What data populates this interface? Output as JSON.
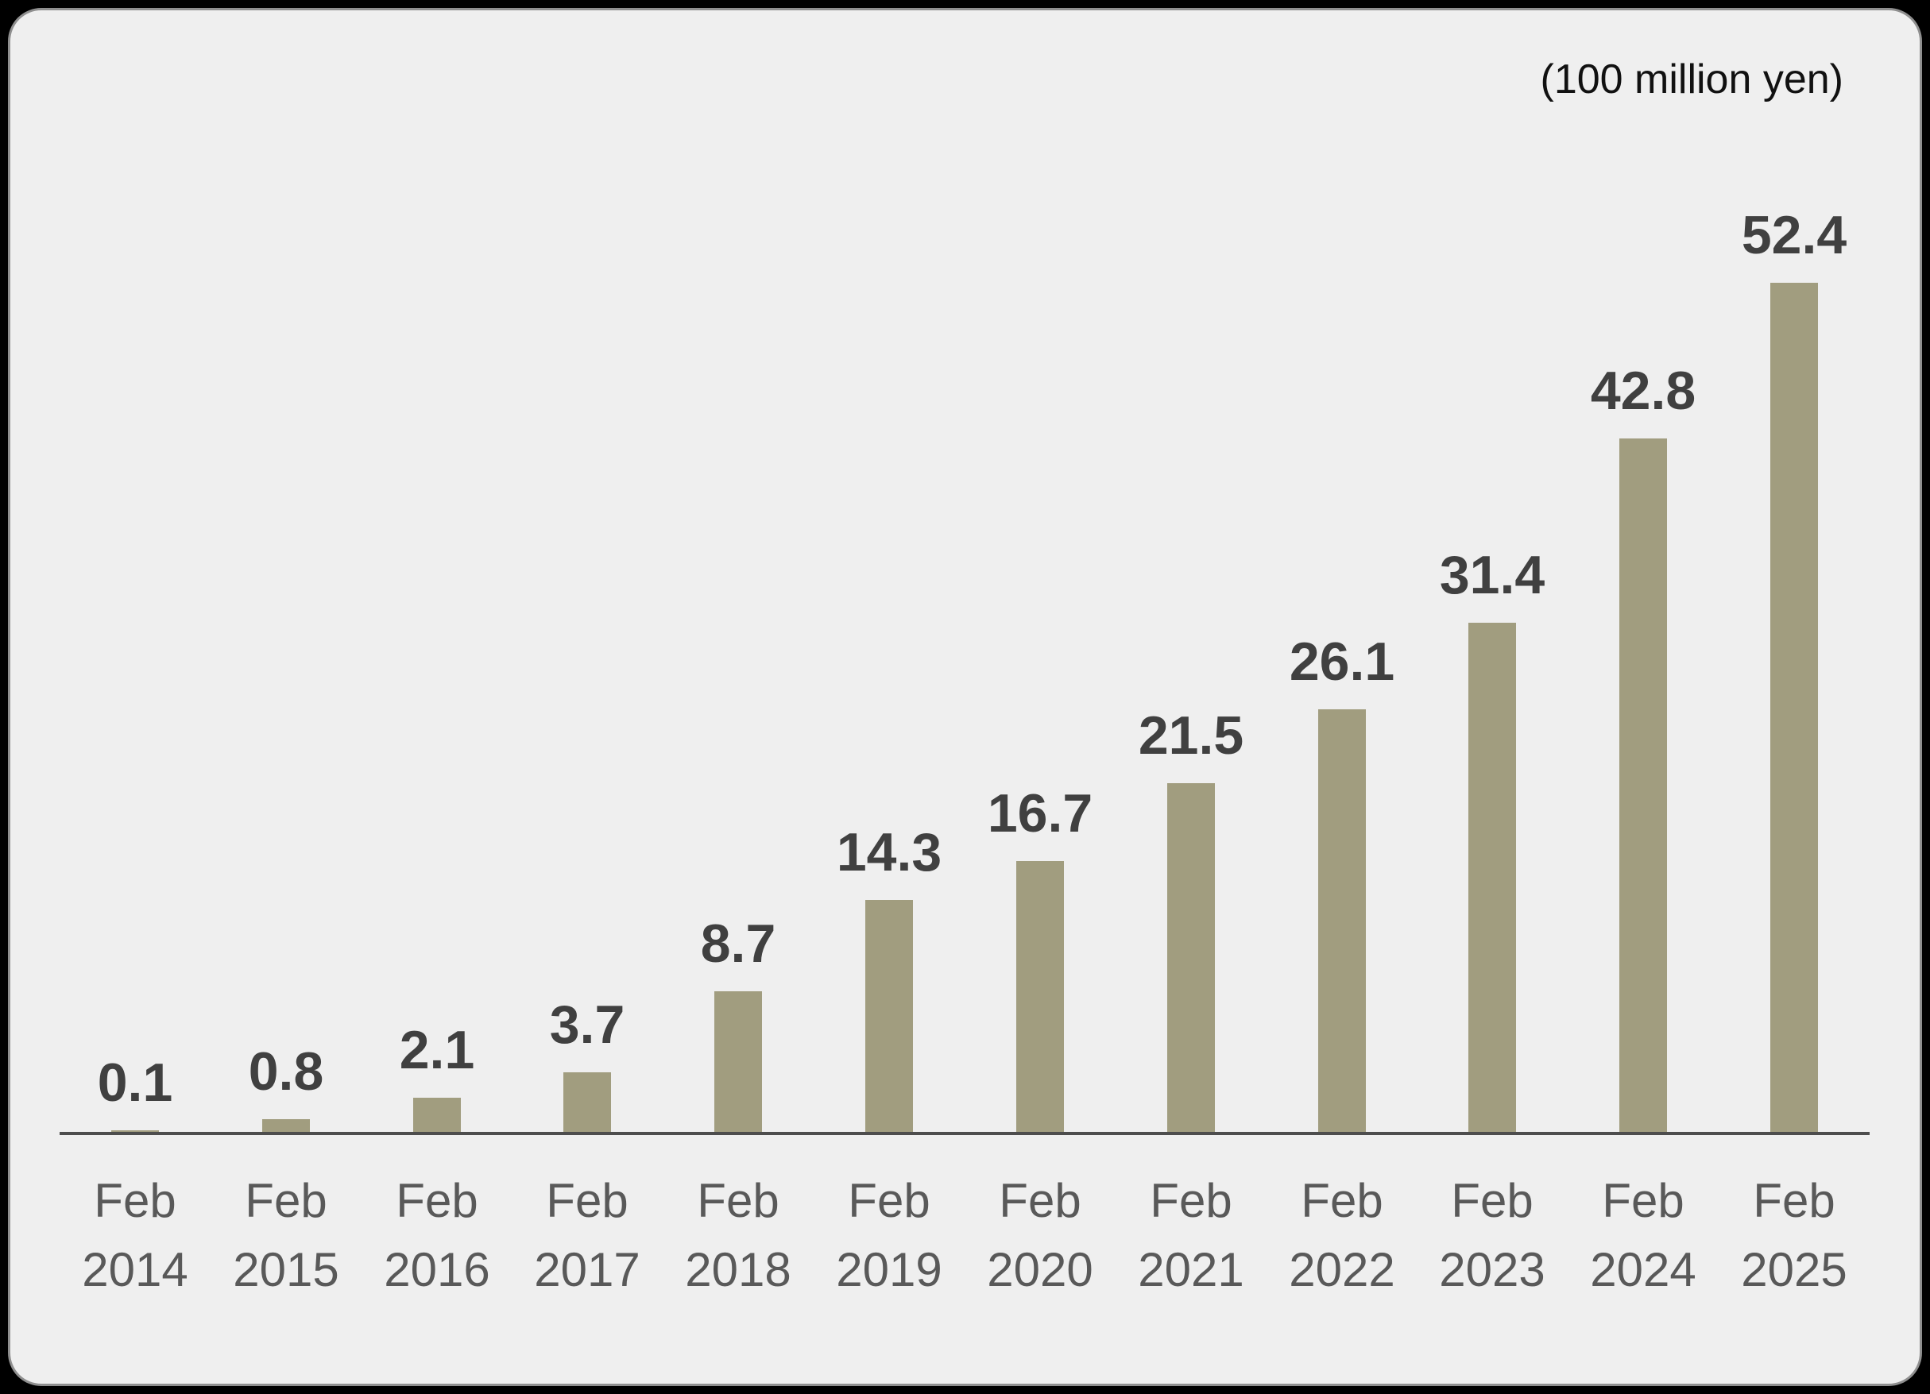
{
  "panel": {
    "outer_background": "#000000",
    "background": "#efefef",
    "border_color": "#8f8f8f"
  },
  "chart_data": {
    "type": "bar",
    "title": "",
    "unit_label": "(100 million yen)",
    "xlabel": "",
    "ylabel": "",
    "categories": [
      "Feb 2014",
      "Feb 2015",
      "Feb 2016",
      "Feb 2017",
      "Feb 2018",
      "Feb 2019",
      "Feb 2020",
      "Feb 2021",
      "Feb 2022",
      "Feb 2023",
      "Feb 2024",
      "Feb 2025"
    ],
    "values": [
      0.1,
      0.8,
      2.1,
      3.7,
      8.7,
      14.3,
      16.7,
      21.5,
      26.1,
      31.4,
      42.8,
      52.4
    ],
    "ylim": [
      0,
      55
    ],
    "grid": false,
    "legend": false,
    "data_labels": true,
    "bar_color": "#a19d7f",
    "value_label_color": "#404040",
    "tick_label_color": "#595959",
    "axis_line_color": "#4d4d4d"
  }
}
